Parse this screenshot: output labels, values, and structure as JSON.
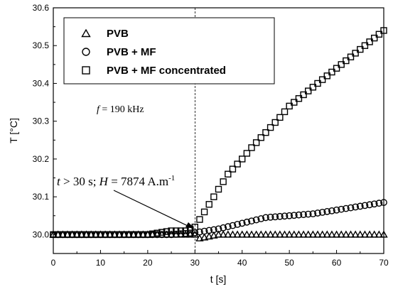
{
  "chart_data": {
    "type": "scatter",
    "xlabel": "t [s]",
    "ylabel": "T [°C]",
    "xlim": [
      0,
      70
    ],
    "ylim": [
      29.95,
      30.6
    ],
    "xticks": [
      0,
      10,
      20,
      30,
      40,
      50,
      60,
      70
    ],
    "yticks": [
      30.0,
      30.1,
      30.2,
      30.3,
      30.4,
      30.5,
      30.6
    ],
    "ytick_labels": [
      "30.0",
      "30.1",
      "30.2",
      "30.3",
      "30.4",
      "30.5",
      "30.6"
    ],
    "grid": false,
    "legend": "top-left",
    "series": [
      {
        "name": "PVB",
        "marker": "triangle",
        "x": [
          0,
          5,
          10,
          15,
          20,
          25,
          30,
          31,
          35,
          40,
          45,
          50,
          55,
          60,
          65,
          70
        ],
        "y": [
          30.0,
          30.0,
          30.0,
          30.0,
          30.0,
          30.0,
          30.0,
          29.99,
          30.0,
          30.0,
          30.0,
          30.0,
          30.0,
          30.0,
          30.0,
          30.0
        ]
      },
      {
        "name": "PVB + MF",
        "marker": "circle",
        "x": [
          0,
          5,
          10,
          15,
          20,
          25,
          30,
          35,
          40,
          45,
          50,
          55,
          60,
          65,
          70
        ],
        "y": [
          30.0,
          30.0,
          30.0,
          30.0,
          30.0,
          30.0,
          30.005,
          30.015,
          30.03,
          30.045,
          30.05,
          30.055,
          30.065,
          30.075,
          30.085
        ]
      },
      {
        "name": "PVB + MF concentrated",
        "marker": "square",
        "x": [
          0,
          5,
          10,
          15,
          20,
          25,
          28,
          30,
          31,
          32,
          33,
          35,
          37,
          40,
          42,
          45,
          48,
          50,
          53,
          55,
          58,
          60,
          63,
          65,
          68,
          70
        ],
        "y": [
          30.0,
          30.0,
          30.0,
          30.0,
          30.0,
          30.01,
          30.01,
          30.02,
          30.04,
          30.06,
          30.08,
          30.12,
          30.16,
          30.2,
          30.23,
          30.27,
          30.31,
          30.34,
          30.37,
          30.39,
          30.42,
          30.44,
          30.47,
          30.49,
          30.52,
          30.54
        ]
      }
    ],
    "annotations": {
      "vline_x": 30,
      "freq": {
        "sym": "f",
        "text": " = 190 kHz"
      },
      "field": {
        "t_sym": "t",
        "t_text": " > 30 s; ",
        "h_sym": "H",
        "h_text": " = 7874 A.m",
        "h_sup": "-1"
      },
      "arrow_to": [
        30,
        30.01
      ]
    }
  }
}
